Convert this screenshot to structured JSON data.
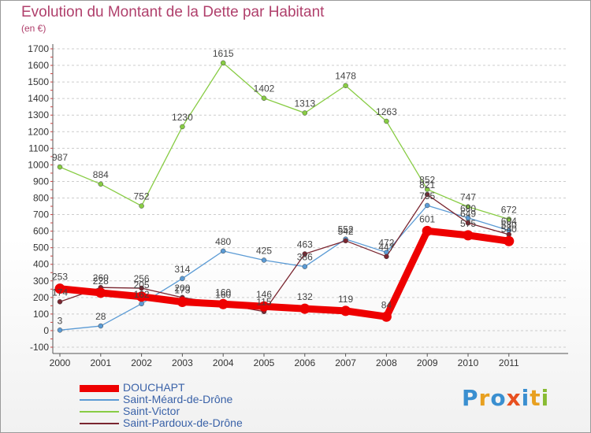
{
  "title": "Evolution du Montant de la Dette par Habitant",
  "unit_label": "(en €)",
  "logo_text": "Proxiti",
  "colors": {
    "title": "#b0406c",
    "legend_text": "#3a62a8",
    "grid": "#cccccc"
  },
  "chart_data": {
    "type": "line",
    "title": "Evolution du Montant de la Dette par Habitant",
    "subtitle": "(en €)",
    "x": [
      "2000",
      "2001",
      "2002",
      "2003",
      "2004",
      "2005",
      "2006",
      "2007",
      "2008",
      "2009",
      "2010",
      "2011"
    ],
    "y_ticks": [
      "1700",
      "1600",
      "1500",
      "1400",
      "1300",
      "1200",
      "1100",
      "1000",
      "900",
      "800",
      "700",
      "600",
      "500",
      "400",
      "300",
      "200",
      "100",
      "0",
      "-100"
    ],
    "ylim": [
      -100,
      1700
    ],
    "grid": "horizontal dashed",
    "legend_position": "bottom-left",
    "series": [
      {
        "name": "Saint-Victor",
        "color": "#88cc44",
        "values": [
          987,
          884,
          752,
          1230,
          1615,
          1402,
          1313,
          1478,
          1263,
          852,
          747,
          672
        ]
      },
      {
        "name": "Saint-Méard-de-Drône",
        "color": "#5b9bd5",
        "values": [
          3,
          28,
          162,
          314,
          480,
          425,
          386,
          552,
          472,
          755,
          680,
          604
        ]
      },
      {
        "name": "Saint-Pardoux-de-Drône",
        "color": "#7a2630",
        "values": [
          174,
          260,
          256,
          200,
          160,
          115,
          463,
          542,
          447,
          821,
          649,
          580
        ]
      },
      {
        "name": "DOUCHAPT",
        "color": "#ee0000",
        "values": [
          253,
          228,
          205,
          173,
          160,
          146,
          132,
          119,
          84,
          601,
          575,
          540
        ]
      }
    ]
  }
}
